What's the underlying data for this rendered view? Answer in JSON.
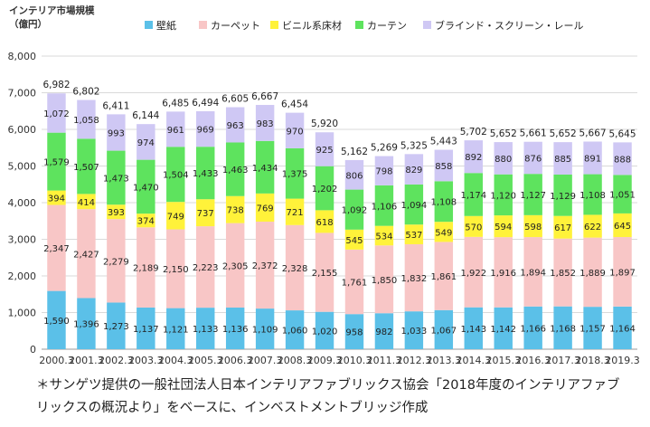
{
  "chart_data": {
    "type": "bar",
    "stacked": true,
    "ylabel": "インテリア市場規模\n（億円）",
    "ylim": [
      0,
      8000
    ],
    "yticks": [
      "0",
      "1,000",
      "2,000",
      "3,000",
      "4,000",
      "5,000",
      "6,000",
      "7,000",
      "8,000"
    ],
    "grid": true,
    "legend_position": "top",
    "categories": [
      "2000.3",
      "2001.3",
      "2002.3",
      "2003.3",
      "2004.3",
      "2005.3",
      "2006.3",
      "2007.3",
      "2008.3",
      "2009.3",
      "2010.3",
      "2011.3",
      "2012.3",
      "2013.3",
      "2014.3",
      "2015.3",
      "2016.3",
      "2017.3",
      "2018.3",
      "2019.3"
    ],
    "series": [
      {
        "name": "壁紙",
        "color": "#5bc0e8",
        "values": [
          1590,
          1396,
          1273,
          1137,
          1121,
          1133,
          1136,
          1109,
          1060,
          1020,
          958,
          982,
          1033,
          1067,
          1143,
          1142,
          1166,
          1168,
          1157,
          1164
        ]
      },
      {
        "name": "カーペット",
        "color": "#f8c6c6",
        "values": [
          2347,
          2427,
          2279,
          2189,
          2150,
          2223,
          2305,
          2372,
          2328,
          2155,
          1761,
          1850,
          1832,
          1861,
          1922,
          1916,
          1894,
          1852,
          1889,
          1897
        ]
      },
      {
        "name": "ビニル系床材",
        "color": "#fff23a",
        "values": [
          394,
          414,
          393,
          374,
          749,
          737,
          738,
          769,
          721,
          618,
          545,
          534,
          537,
          549,
          570,
          594,
          598,
          617,
          622,
          645
        ]
      },
      {
        "name": "カーテン",
        "color": "#5ee35e",
        "values": [
          1579,
          1507,
          1473,
          1470,
          1504,
          1433,
          1463,
          1434,
          1375,
          1202,
          1092,
          1106,
          1094,
          1108,
          1174,
          1120,
          1127,
          1129,
          1108,
          1051
        ]
      },
      {
        "name": "ブラインド・スクリーン・レール",
        "color": "#cfc8f4",
        "values": [
          1072,
          1058,
          993,
          974,
          961,
          969,
          963,
          983,
          970,
          925,
          806,
          798,
          829,
          858,
          892,
          880,
          876,
          885,
          891,
          888
        ]
      }
    ],
    "totals": [
      "6,982",
      "6,802",
      "6,411",
      "6,144",
      "6,485",
      "6,494",
      "6,605",
      "6,667",
      "6,454",
      "5,920",
      "5,162",
      "5,269",
      "5,325",
      "5,443",
      "5,702",
      "5,652",
      "5,661",
      "5,652",
      "5,667",
      "5,645"
    ]
  },
  "note": {
    "line1": "＊サンゲツ提供の一般社団法人日本インテリアファブリックス協会「2018年度のインテリアファブ",
    "line2": "リックスの概況より」をベースに、インベストメントブリッジ作成"
  }
}
